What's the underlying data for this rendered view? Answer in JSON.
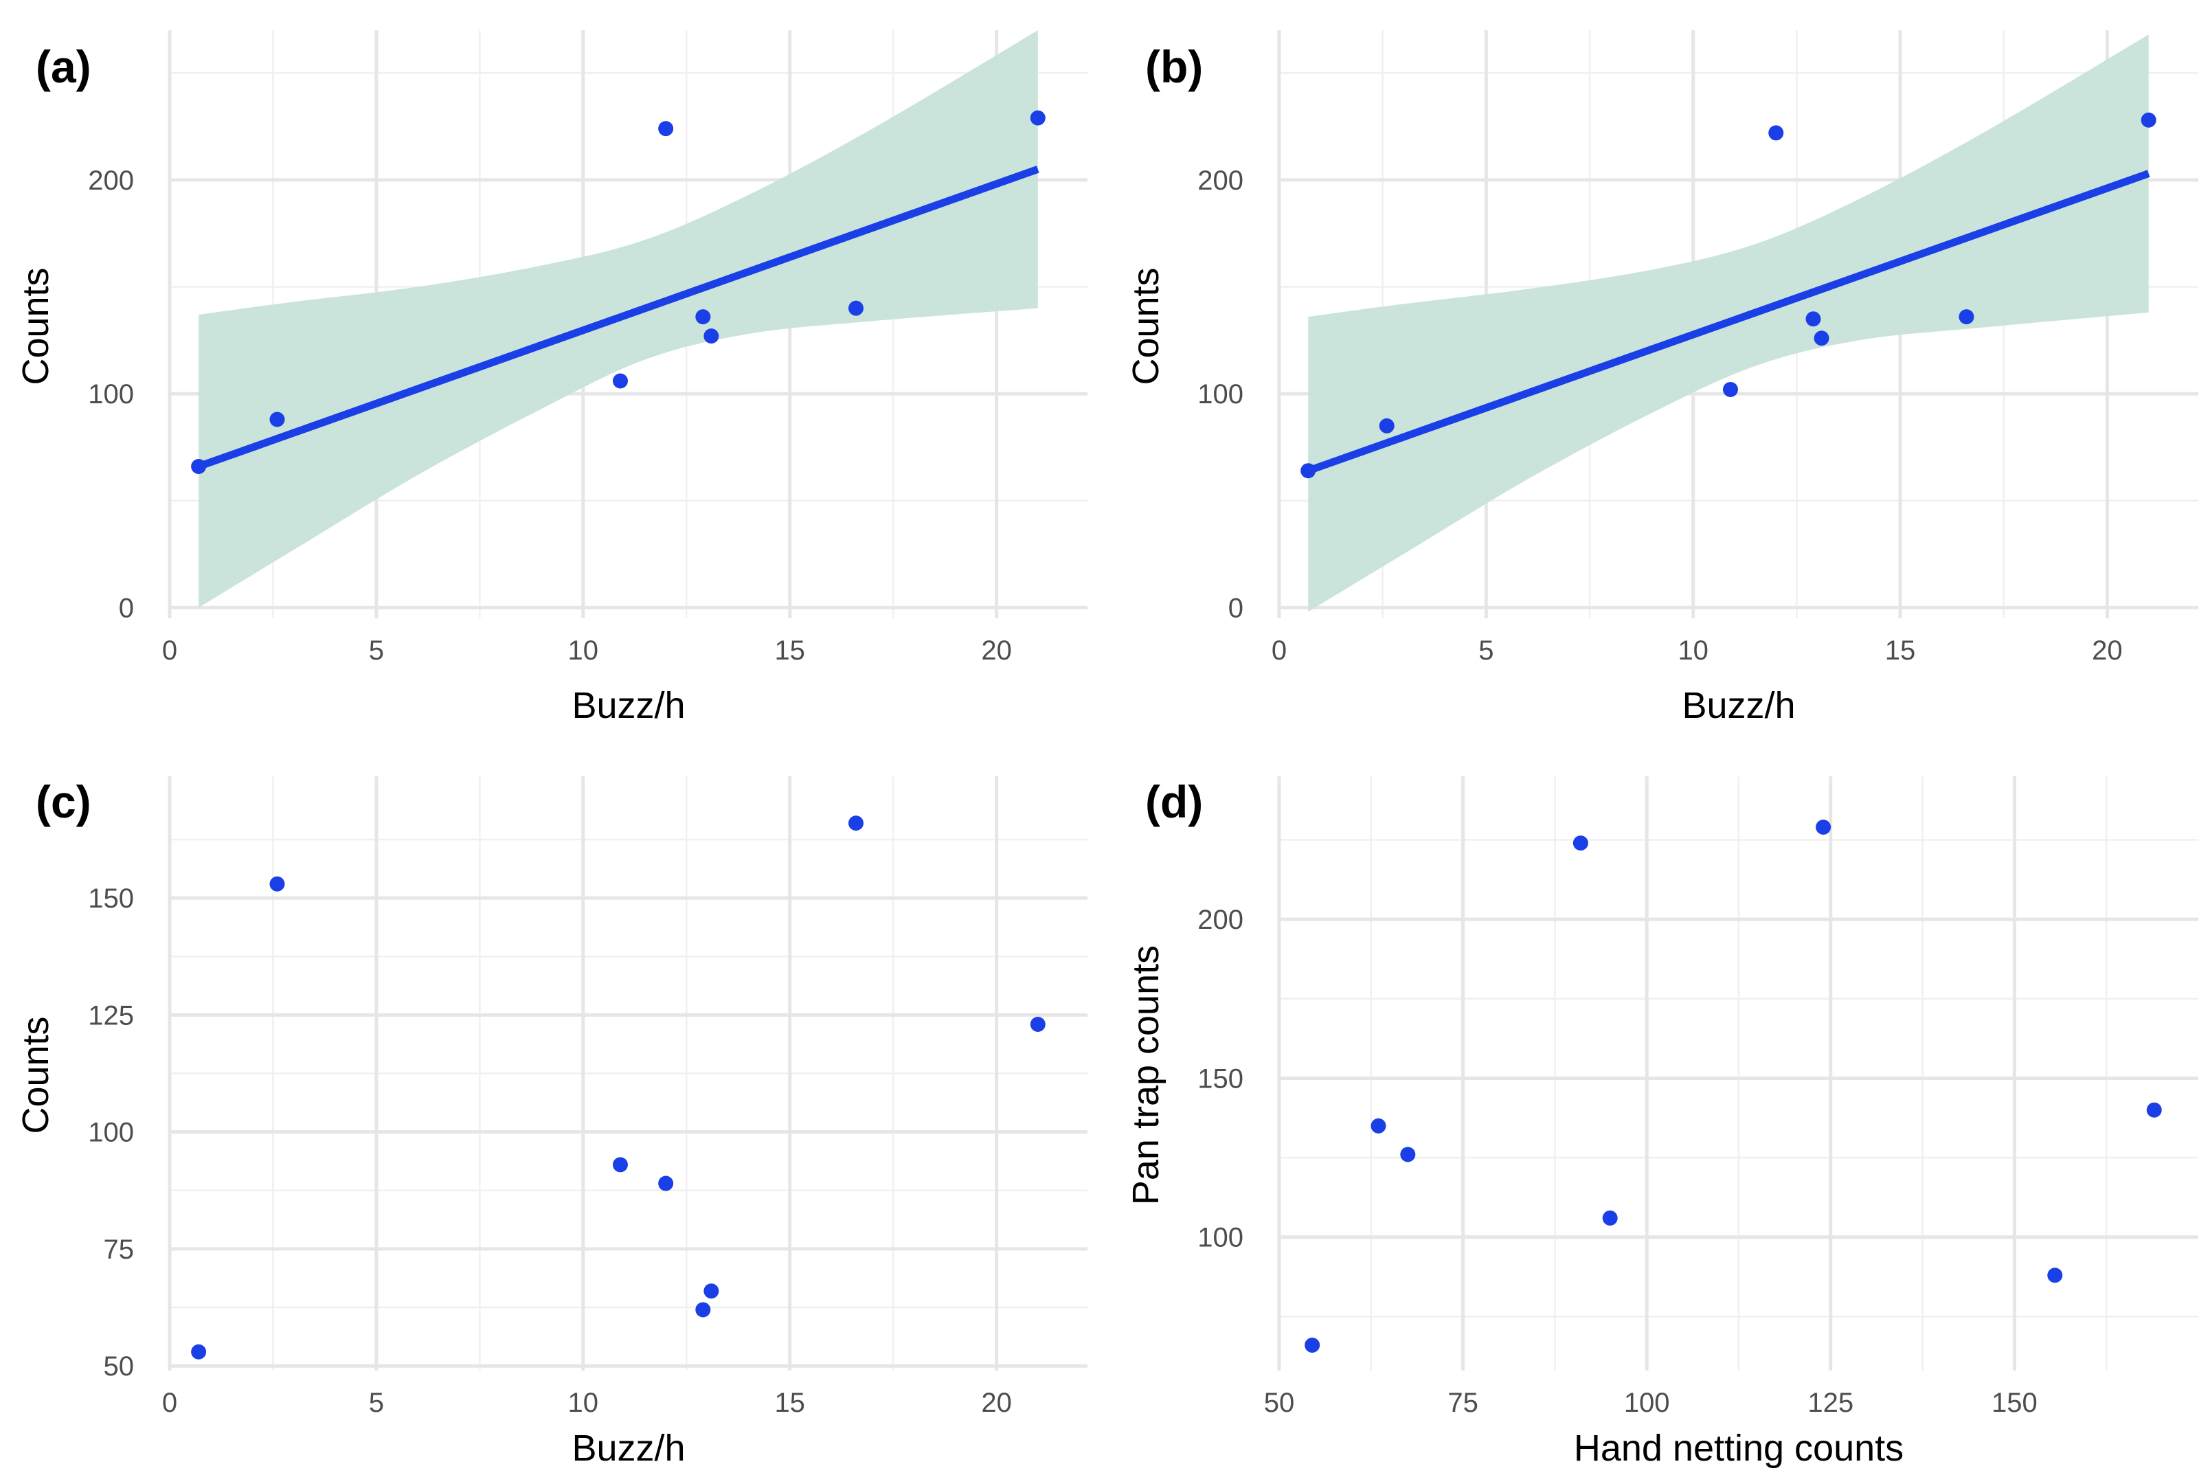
{
  "colors": {
    "points": "#1a3fe6",
    "fit_line": "#1a3fe6",
    "ci_band": "#c7e3da",
    "grid_major": "#e6e6e6",
    "grid_minor": "#f0f0f0",
    "tick_text": "#4d4d4d"
  },
  "chart_data": [
    {
      "id": "a",
      "tag": "(a)",
      "type": "scatter",
      "xlabel": "Buzz/h",
      "ylabel": "Counts",
      "xlim": [
        0,
        22.2
      ],
      "ylim": [
        -5,
        270
      ],
      "xticks": [
        0,
        5,
        10,
        15,
        20
      ],
      "yticks": [
        0,
        100,
        200
      ],
      "grid": true,
      "points": [
        {
          "x": 0.7,
          "y": 66
        },
        {
          "x": 2.6,
          "y": 88
        },
        {
          "x": 10.9,
          "y": 106
        },
        {
          "x": 12.0,
          "y": 224
        },
        {
          "x": 12.9,
          "y": 136
        },
        {
          "x": 13.1,
          "y": 127
        },
        {
          "x": 16.6,
          "y": 140
        },
        {
          "x": 21.0,
          "y": 229
        }
      ],
      "fit": {
        "line": [
          {
            "x": 0.7,
            "y": 66
          },
          {
            "x": 21.0,
            "y": 205
          }
        ],
        "ci_upper": [
          {
            "x": 0.7,
            "y": 137
          },
          {
            "x": 3,
            "y": 143
          },
          {
            "x": 6,
            "y": 150
          },
          {
            "x": 9,
            "y": 160
          },
          {
            "x": 11.5,
            "y": 172
          },
          {
            "x": 14,
            "y": 193
          },
          {
            "x": 17,
            "y": 224
          },
          {
            "x": 21.0,
            "y": 270
          }
        ],
        "ci_lower": [
          {
            "x": 0.7,
            "y": 0
          },
          {
            "x": 3,
            "y": 27
          },
          {
            "x": 6,
            "y": 62
          },
          {
            "x": 9,
            "y": 93
          },
          {
            "x": 11.5,
            "y": 116
          },
          {
            "x": 14,
            "y": 128
          },
          {
            "x": 17,
            "y": 134
          },
          {
            "x": 21.0,
            "y": 140
          }
        ]
      }
    },
    {
      "id": "b",
      "tag": "(b)",
      "type": "scatter",
      "xlabel": "Buzz/h",
      "ylabel": "Counts",
      "xlim": [
        0,
        22.2
      ],
      "ylim": [
        -5,
        270
      ],
      "xticks": [
        0,
        5,
        10,
        15,
        20
      ],
      "yticks": [
        0,
        100,
        200
      ],
      "grid": true,
      "points": [
        {
          "x": 0.7,
          "y": 64
        },
        {
          "x": 2.6,
          "y": 85
        },
        {
          "x": 10.9,
          "y": 102
        },
        {
          "x": 12.0,
          "y": 222
        },
        {
          "x": 12.9,
          "y": 135
        },
        {
          "x": 13.1,
          "y": 126
        },
        {
          "x": 16.6,
          "y": 136
        },
        {
          "x": 21.0,
          "y": 228
        }
      ],
      "fit": {
        "line": [
          {
            "x": 0.7,
            "y": 64
          },
          {
            "x": 21.0,
            "y": 203
          }
        ],
        "ci_upper": [
          {
            "x": 0.7,
            "y": 136
          },
          {
            "x": 3,
            "y": 142
          },
          {
            "x": 6,
            "y": 149
          },
          {
            "x": 9,
            "y": 158
          },
          {
            "x": 11.5,
            "y": 170
          },
          {
            "x": 14,
            "y": 191
          },
          {
            "x": 17,
            "y": 222
          },
          {
            "x": 21.0,
            "y": 268
          }
        ],
        "ci_lower": [
          {
            "x": 0.7,
            "y": -2
          },
          {
            "x": 3,
            "y": 25
          },
          {
            "x": 6,
            "y": 60
          },
          {
            "x": 9,
            "y": 91
          },
          {
            "x": 11.5,
            "y": 113
          },
          {
            "x": 14,
            "y": 125
          },
          {
            "x": 17,
            "y": 131
          },
          {
            "x": 21.0,
            "y": 138
          }
        ]
      }
    },
    {
      "id": "c",
      "tag": "(c)",
      "type": "scatter",
      "xlabel": "Buzz/h",
      "ylabel": "Counts",
      "xlim": [
        0,
        22.2
      ],
      "ylim": [
        49,
        176
      ],
      "xticks": [
        0,
        5,
        10,
        15,
        20
      ],
      "yticks": [
        50,
        75,
        100,
        125,
        150
      ],
      "grid": true,
      "points": [
        {
          "x": 0.7,
          "y": 53
        },
        {
          "x": 2.6,
          "y": 153
        },
        {
          "x": 10.9,
          "y": 93
        },
        {
          "x": 12.0,
          "y": 89
        },
        {
          "x": 12.9,
          "y": 62
        },
        {
          "x": 13.1,
          "y": 66
        },
        {
          "x": 16.6,
          "y": 166
        },
        {
          "x": 21.0,
          "y": 123
        }
      ]
    },
    {
      "id": "d",
      "tag": "(d)",
      "type": "scatter",
      "xlabel": "Hand netting counts",
      "ylabel": "Pan trap counts",
      "xlim": [
        50,
        175
      ],
      "ylim": [
        58,
        245
      ],
      "xticks": [
        50,
        75,
        100,
        125,
        150
      ],
      "yticks": [
        100,
        150,
        200
      ],
      "grid": true,
      "points": [
        {
          "x": 54.5,
          "y": 66
        },
        {
          "x": 63.5,
          "y": 135
        },
        {
          "x": 67.5,
          "y": 126
        },
        {
          "x": 91.0,
          "y": 224
        },
        {
          "x": 95.0,
          "y": 106
        },
        {
          "x": 124.0,
          "y": 229
        },
        {
          "x": 155.5,
          "y": 88
        },
        {
          "x": 169.0,
          "y": 140
        }
      ]
    }
  ]
}
